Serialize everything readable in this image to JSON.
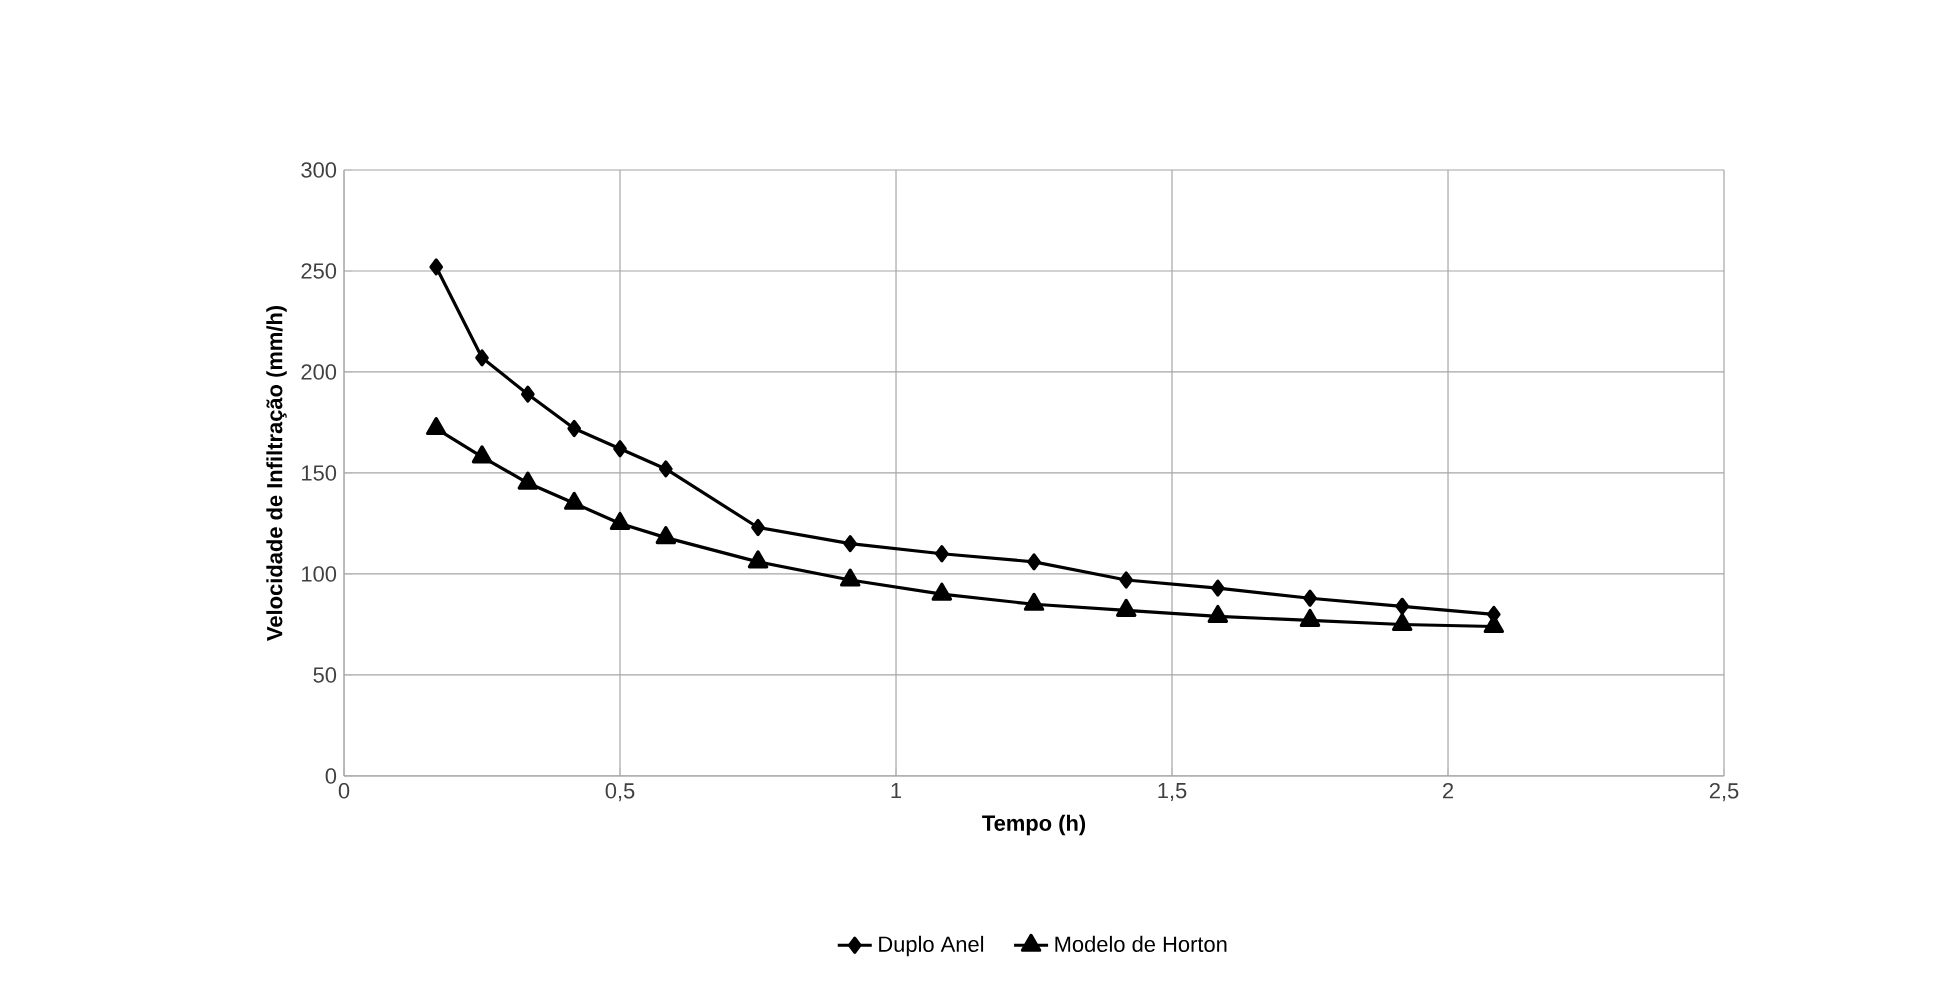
{
  "chart_data": {
    "type": "line",
    "xlabel": "Tempo (h)",
    "ylabel": "Velocidade de Infiltração (mm/h)",
    "x": [
      0.167,
      0.25,
      0.333,
      0.417,
      0.5,
      0.583,
      0.75,
      0.917,
      1.083,
      1.25,
      1.417,
      1.583,
      1.75,
      1.917,
      2.083
    ],
    "series": [
      {
        "name": "Duplo Anel",
        "color": "#000000",
        "marker": "diamond",
        "values": [
          252,
          207,
          189,
          172,
          162,
          152,
          123,
          115,
          110,
          106,
          97,
          93,
          88,
          84,
          80
        ]
      },
      {
        "name": "Modelo de Horton",
        "color": "#000000",
        "marker": "triangle",
        "values": [
          172,
          158,
          145,
          135,
          125,
          118,
          106,
          97,
          90,
          85,
          82,
          79,
          77,
          75,
          74
        ]
      }
    ],
    "xlim": [
      0,
      2.5
    ],
    "xticks": [
      {
        "value": 0,
        "label": "0"
      },
      {
        "value": 0.5,
        "label": "0,5"
      },
      {
        "value": 1,
        "label": "1"
      },
      {
        "value": 1.5,
        "label": "1,5"
      },
      {
        "value": 2,
        "label": "2"
      },
      {
        "value": 2.5,
        "label": "2,5"
      }
    ],
    "ylim": [
      0,
      300
    ],
    "yticks": [
      0,
      50,
      100,
      150,
      200,
      250,
      300
    ],
    "grid": true,
    "legend": "bottom",
    "line_style": "solid"
  }
}
